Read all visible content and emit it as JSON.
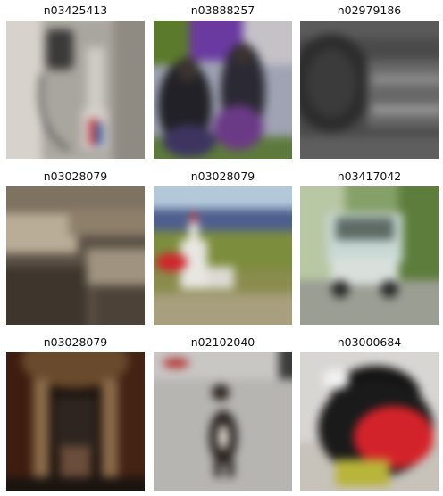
{
  "tiles": [
    {
      "label": "n03425413",
      "image": "blurred photo of a fuel pump / dispenser"
    },
    {
      "label": "n03888257",
      "image": "blurred photo of people in front of a parachute"
    },
    {
      "label": "n02979186",
      "image": "blurred photo of a cassette player"
    },
    {
      "label": "n03028079",
      "image": "blurred sepia photo of a church interior"
    },
    {
      "label": "n03028079",
      "image": "blurred photo of a white church in a field"
    },
    {
      "label": "n03417042",
      "image": "blurred photo of a garbage truck"
    },
    {
      "label": "n03028079",
      "image": "blurred photo of a dark church interior with arches"
    },
    {
      "label": "n02102040",
      "image": "blurred photo of a small dog on a road"
    },
    {
      "label": "n03000684",
      "image": "blurred photo of a red chainsaw"
    }
  ]
}
